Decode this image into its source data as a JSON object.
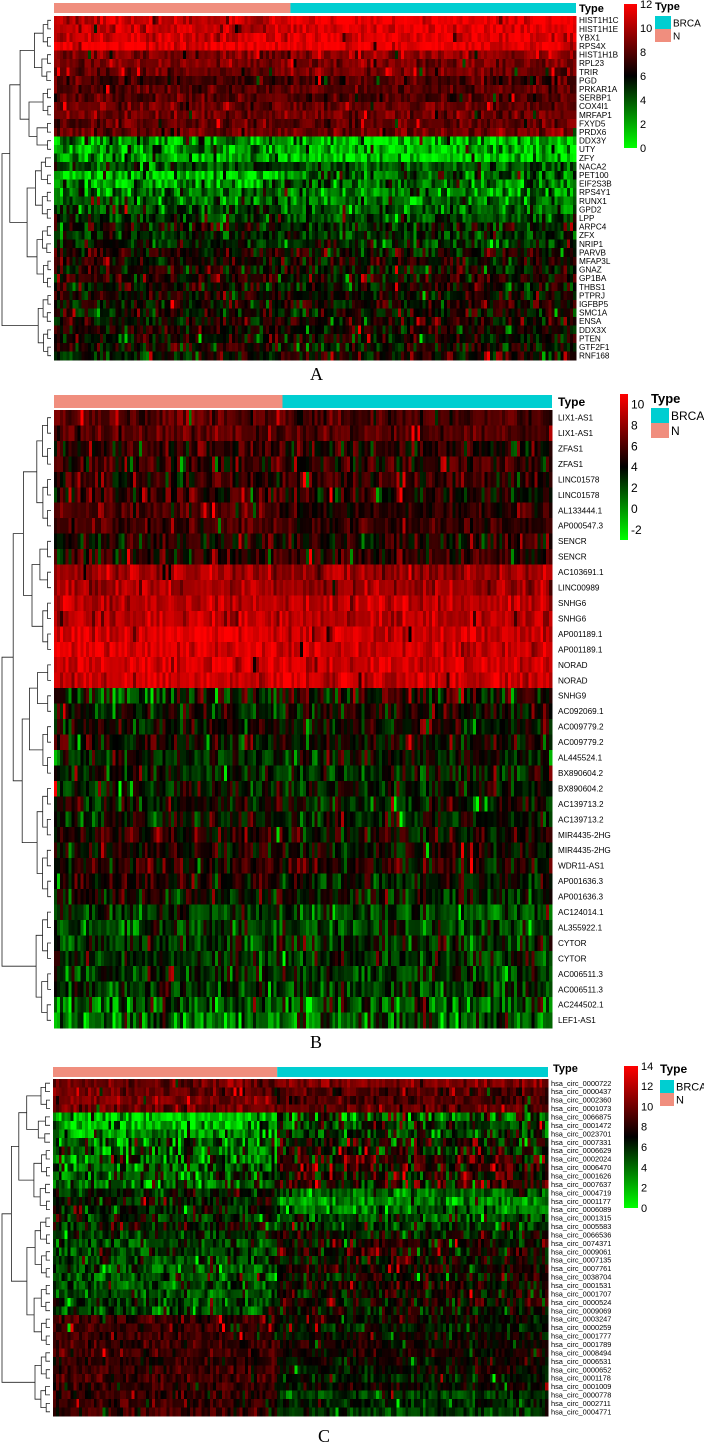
{
  "chart_data": [
    {
      "type": "heatmap",
      "panel_label": "A",
      "annotation_title": "Type",
      "legend_title": "Type",
      "legend_entries": [
        {
          "label": "BRCA",
          "color": "#00CED1"
        },
        {
          "label": "N",
          "color": "#F08E7E"
        }
      ],
      "color_scale": {
        "min": 0,
        "max": 12,
        "low": "#00FF00",
        "mid": "#000000",
        "high": "#FF0000",
        "ticks": [
          "12",
          "10",
          "8",
          "6",
          "4",
          "2",
          "0"
        ]
      },
      "normal_fraction": 0.45,
      "rows": [
        {
          "label": "HIST1H1C",
          "cluster": "high",
          "n": 10.5,
          "t": 11.5
        },
        {
          "label": "HIST1H1E",
          "cluster": "high",
          "n": 10.5,
          "t": 11.3
        },
        {
          "label": "YBX1",
          "cluster": "high",
          "n": 11.0,
          "t": 11.2
        },
        {
          "label": "RPS4X",
          "cluster": "high",
          "n": 11.5,
          "t": 11.4
        },
        {
          "label": "HIST1H1B",
          "cluster": "high",
          "n": 9.0,
          "t": 9.5
        },
        {
          "label": "RPL23",
          "cluster": "high",
          "n": 9.0,
          "t": 8.8
        },
        {
          "label": "TRIR",
          "cluster": "high",
          "n": 8.5,
          "t": 8.8
        },
        {
          "label": "PGD",
          "cluster": "high",
          "n": 7.5,
          "t": 7.8
        },
        {
          "label": "PRKAR1A",
          "cluster": "high",
          "n": 8.0,
          "t": 8.2
        },
        {
          "label": "SERBP1",
          "cluster": "high",
          "n": 8.0,
          "t": 7.8
        },
        {
          "label": "COX4I1",
          "cluster": "high",
          "n": 8.5,
          "t": 8.4
        },
        {
          "label": "MRFAP1",
          "cluster": "high",
          "n": 8.5,
          "t": 8.6
        },
        {
          "label": "FXYD5",
          "cluster": "high",
          "n": 8.0,
          "t": 8.3
        },
        {
          "label": "PRDX6",
          "cluster": "high",
          "n": 8.5,
          "t": 8.7
        },
        {
          "label": "DDX3Y",
          "cluster": "sex",
          "n": 3.0,
          "t": 1.5
        },
        {
          "label": "UTY",
          "cluster": "sex",
          "n": 2.5,
          "t": 1.5
        },
        {
          "label": "ZFY",
          "cluster": "sex",
          "n": 2.5,
          "t": 1.5
        },
        {
          "label": "NACA2",
          "cluster": "mid",
          "n": 4.5,
          "t": 4.0
        },
        {
          "label": "PET100",
          "cluster": "sex",
          "n": 1.5,
          "t": 4.0
        },
        {
          "label": "EIF2S3B",
          "cluster": "sex",
          "n": 2.5,
          "t": 3.5
        },
        {
          "label": "RPS4Y1",
          "cluster": "sex",
          "n": 3.5,
          "t": 3.0
        },
        {
          "label": "RUNX1",
          "cluster": "mid",
          "n": 4.0,
          "t": 3.5
        },
        {
          "label": "GPD2",
          "cluster": "mid",
          "n": 4.5,
          "t": 4.0
        },
        {
          "label": "LPP",
          "cluster": "mid",
          "n": 5.0,
          "t": 4.5
        },
        {
          "label": "ARPC4",
          "cluster": "mid",
          "n": 6.0,
          "t": 5.5
        },
        {
          "label": "ZFX",
          "cluster": "mid",
          "n": 5.5,
          "t": 5.0
        },
        {
          "label": "NRIP1",
          "cluster": "mid",
          "n": 5.5,
          "t": 5.0
        },
        {
          "label": "PARVB",
          "cluster": "mid",
          "n": 6.5,
          "t": 6.0
        },
        {
          "label": "MFAP3L",
          "cluster": "mid",
          "n": 6.0,
          "t": 6.5
        },
        {
          "label": "GNAZ",
          "cluster": "mid",
          "n": 6.5,
          "t": 6.0
        },
        {
          "label": "GP1BA",
          "cluster": "mid",
          "n": 6.5,
          "t": 6.5
        },
        {
          "label": "THBS1",
          "cluster": "mid",
          "n": 6.0,
          "t": 6.5
        },
        {
          "label": "PTPRJ",
          "cluster": "mid",
          "n": 6.5,
          "t": 6.0
        },
        {
          "label": "IGFBP5",
          "cluster": "mid",
          "n": 6.0,
          "t": 6.5
        },
        {
          "label": "SMC1A",
          "cluster": "mid",
          "n": 5.5,
          "t": 6.0
        },
        {
          "label": "ENSA",
          "cluster": "mid",
          "n": 6.0,
          "t": 6.5
        },
        {
          "label": "DDX3X",
          "cluster": "mid",
          "n": 6.5,
          "t": 6.0
        },
        {
          "label": "PTEN",
          "cluster": "mid",
          "n": 6.0,
          "t": 6.2
        },
        {
          "label": "GTF2F1",
          "cluster": "mid",
          "n": 6.2,
          "t": 6.0
        },
        {
          "label": "RNF168",
          "cluster": "mid",
          "n": 6.0,
          "t": 6.3
        }
      ]
    },
    {
      "type": "heatmap",
      "panel_label": "B",
      "annotation_title": "Type",
      "legend_title": "Type",
      "legend_entries": [
        {
          "label": "BRCA",
          "color": "#00CED1"
        },
        {
          "label": "N",
          "color": "#F08E7E"
        }
      ],
      "color_scale": {
        "min": -3,
        "max": 11,
        "low": "#00FF00",
        "mid": "#000000",
        "high": "#FF0000",
        "ticks": [
          "10",
          "8",
          "6",
          "4",
          "2",
          "0",
          "-2"
        ]
      },
      "normal_fraction": 0.46,
      "rows": [
        {
          "label": "LIX1-AS1",
          "cluster": "high",
          "n": 6.5,
          "t": 6.0
        },
        {
          "label": "LIX1-AS1",
          "cluster": "high",
          "n": 6.5,
          "t": 6.2
        },
        {
          "label": "ZFAS1",
          "cluster": "mid",
          "n": 5.5,
          "t": 5.0
        },
        {
          "label": "ZFAS1",
          "cluster": "mid",
          "n": 5.5,
          "t": 5.2
        },
        {
          "label": "LINC01578",
          "cluster": "mid",
          "n": 5.0,
          "t": 5.0
        },
        {
          "label": "LINC01578",
          "cluster": "mid",
          "n": 5.0,
          "t": 4.8
        },
        {
          "label": "AL133444.1",
          "cluster": "high",
          "n": 6.0,
          "t": 5.0
        },
        {
          "label": "AP000547.3",
          "cluster": "high",
          "n": 6.0,
          "t": 5.2
        },
        {
          "label": "SENCR",
          "cluster": "mid",
          "n": 5.0,
          "t": 4.8
        },
        {
          "label": "SENCR",
          "cluster": "mid",
          "n": 5.0,
          "t": 5.0
        },
        {
          "label": "AC103691.1",
          "cluster": "high",
          "n": 8.5,
          "t": 8.0
        },
        {
          "label": "LINC00989",
          "cluster": "high",
          "n": 8.5,
          "t": 8.2
        },
        {
          "label": "SNHG6",
          "cluster": "high",
          "n": 9.0,
          "t": 9.0
        },
        {
          "label": "SNHG6",
          "cluster": "high",
          "n": 9.0,
          "t": 9.2
        },
        {
          "label": "AP001189.1",
          "cluster": "high",
          "n": 10.0,
          "t": 9.5
        },
        {
          "label": "AP001189.1",
          "cluster": "high",
          "n": 10.0,
          "t": 9.5
        },
        {
          "label": "NORAD",
          "cluster": "high",
          "n": 9.5,
          "t": 9.5
        },
        {
          "label": "NORAD",
          "cluster": "high",
          "n": 9.5,
          "t": 9.6
        },
        {
          "label": "SNHG9",
          "cluster": "sex",
          "n": 3.0,
          "t": 4.5
        },
        {
          "label": "AC092069.1",
          "cluster": "mid",
          "n": 3.5,
          "t": 4.0
        },
        {
          "label": "AC009779.2",
          "cluster": "mid",
          "n": 4.0,
          "t": 4.0
        },
        {
          "label": "AC009779.2",
          "cluster": "mid",
          "n": 4.0,
          "t": 4.2
        },
        {
          "label": "AL445524.1",
          "cluster": "mid",
          "n": 3.5,
          "t": 3.8
        },
        {
          "label": "BX890604.2",
          "cluster": "mid",
          "n": 3.5,
          "t": 3.5
        },
        {
          "label": "BX890604.2",
          "cluster": "mid",
          "n": 3.5,
          "t": 3.6
        },
        {
          "label": "AC139713.2",
          "cluster": "mid",
          "n": 4.0,
          "t": 3.5
        },
        {
          "label": "AC139713.2",
          "cluster": "mid",
          "n": 4.0,
          "t": 3.6
        },
        {
          "label": "MIR4435-2HG",
          "cluster": "mid",
          "n": 4.5,
          "t": 4.0
        },
        {
          "label": "MIR4435-2HG",
          "cluster": "mid",
          "n": 4.5,
          "t": 4.2
        },
        {
          "label": "WDR11-AS1",
          "cluster": "mid",
          "n": 5.0,
          "t": 4.5
        },
        {
          "label": "AP001636.3",
          "cluster": "mid",
          "n": 4.5,
          "t": 3.5
        },
        {
          "label": "AP001636.3",
          "cluster": "mid",
          "n": 4.5,
          "t": 3.6
        },
        {
          "label": "AC124014.1",
          "cluster": "mid",
          "n": 2.5,
          "t": 2.0
        },
        {
          "label": "AL355922.1",
          "cluster": "mid",
          "n": 2.5,
          "t": 2.5
        },
        {
          "label": "CYTOR",
          "cluster": "mid",
          "n": 3.0,
          "t": 3.0
        },
        {
          "label": "CYTOR",
          "cluster": "mid",
          "n": 3.0,
          "t": 3.2
        },
        {
          "label": "AC006511.3",
          "cluster": "mid",
          "n": 3.0,
          "t": 2.5
        },
        {
          "label": "AC006511.3",
          "cluster": "mid",
          "n": 3.0,
          "t": 2.6
        },
        {
          "label": "AC244502.1",
          "cluster": "sex",
          "n": 1.5,
          "t": 2.0
        },
        {
          "label": "LEF1-AS1",
          "cluster": "sex",
          "n": 1.0,
          "t": 1.5
        }
      ]
    },
    {
      "type": "heatmap",
      "panel_label": "C",
      "annotation_title": "Type",
      "legend_title": "Type",
      "legend_entries": [
        {
          "label": "BRCA",
          "color": "#00CED1"
        },
        {
          "label": "N",
          "color": "#F08E7E"
        }
      ],
      "color_scale": {
        "min": 0,
        "max": 14,
        "low": "#00FF00",
        "mid": "#000000",
        "high": "#FF0000",
        "ticks": [
          "14",
          "12",
          "10",
          "8",
          "6",
          "4",
          "2",
          "0"
        ]
      },
      "normal_fraction": 0.45,
      "rows": [
        {
          "label": "hsa_circ_0000722",
          "cluster": "high",
          "n": 10.0,
          "t": 10.5
        },
        {
          "label": "hsa_circ_0000437",
          "cluster": "high",
          "n": 10.0,
          "t": 9.0
        },
        {
          "label": "hsa_circ_0002360",
          "cluster": "high",
          "n": 10.5,
          "t": 9.0
        },
        {
          "label": "hsa_circ_0001073",
          "cluster": "high",
          "n": 10.0,
          "t": 9.5
        },
        {
          "label": "hsa_circ_0066875",
          "cluster": "sex",
          "n": 1.0,
          "t": 5.0
        },
        {
          "label": "hsa_circ_0001472",
          "cluster": "sex",
          "n": 2.0,
          "t": 6.0
        },
        {
          "label": "hsa_circ_0023701",
          "cluster": "sex",
          "n": 3.0,
          "t": 6.0
        },
        {
          "label": "hsa_circ_0007331",
          "cluster": "sex",
          "n": 4.5,
          "t": 7.5
        },
        {
          "label": "hsa_circ_0006629",
          "cluster": "sex",
          "n": 4.5,
          "t": 7.5
        },
        {
          "label": "hsa_circ_0002024",
          "cluster": "sex",
          "n": 4.5,
          "t": 8.0
        },
        {
          "label": "hsa_circ_0006470",
          "cluster": "sex",
          "n": 4.5,
          "t": 8.0
        },
        {
          "label": "hsa_circ_0001626",
          "cluster": "sex",
          "n": 4.5,
          "t": 8.0
        },
        {
          "label": "hsa_circ_0007637",
          "cluster": "sex",
          "n": 4.5,
          "t": 8.0
        },
        {
          "label": "hsa_circ_0004719",
          "cluster": "mid",
          "n": 6.5,
          "t": 4.5
        },
        {
          "label": "hsa_circ_0001177",
          "cluster": "mid",
          "n": 6.5,
          "t": 3.5
        },
        {
          "label": "hsa_circ_0006089",
          "cluster": "mid",
          "n": 6.0,
          "t": 4.0
        },
        {
          "label": "hsa_circ_0001315",
          "cluster": "mid",
          "n": 6.0,
          "t": 5.0
        },
        {
          "label": "hsa_circ_0005583",
          "cluster": "mid",
          "n": 6.5,
          "t": 5.5
        },
        {
          "label": "hsa_circ_0066536",
          "cluster": "mid",
          "n": 6.0,
          "t": 7.0
        },
        {
          "label": "hsa_circ_0074371",
          "cluster": "mid",
          "n": 5.5,
          "t": 7.5
        },
        {
          "label": "hsa_circ_0009061",
          "cluster": "mid",
          "n": 5.5,
          "t": 7.5
        },
        {
          "label": "hsa_circ_0007135",
          "cluster": "mid",
          "n": 5.5,
          "t": 7.0
        },
        {
          "label": "hsa_circ_0007761",
          "cluster": "mid",
          "n": 5.0,
          "t": 7.5
        },
        {
          "label": "hsa_circ_0038704",
          "cluster": "mid",
          "n": 5.0,
          "t": 7.0
        },
        {
          "label": "hsa_circ_0001531",
          "cluster": "mid",
          "n": 5.0,
          "t": 7.5
        },
        {
          "label": "hsa_circ_0001707",
          "cluster": "mid",
          "n": 5.0,
          "t": 7.0
        },
        {
          "label": "hsa_circ_0000524",
          "cluster": "mid",
          "n": 5.5,
          "t": 7.5
        },
        {
          "label": "hsa_circ_0009069",
          "cluster": "mid",
          "n": 5.0,
          "t": 7.0
        },
        {
          "label": "hsa_circ_0003247",
          "cluster": "high",
          "n": 8.5,
          "t": 7.0
        },
        {
          "label": "hsa_circ_0000259",
          "cluster": "high",
          "n": 8.5,
          "t": 6.5
        },
        {
          "label": "hsa_circ_0001777",
          "cluster": "high",
          "n": 8.5,
          "t": 7.0
        },
        {
          "label": "hsa_circ_0001789",
          "cluster": "high",
          "n": 8.5,
          "t": 7.5
        },
        {
          "label": "hsa_circ_0008494",
          "cluster": "high",
          "n": 8.5,
          "t": 7.5
        },
        {
          "label": "hsa_circ_0006531",
          "cluster": "high",
          "n": 8.0,
          "t": 7.0
        },
        {
          "label": "hsa_circ_0000652",
          "cluster": "high",
          "n": 8.5,
          "t": 7.0
        },
        {
          "label": "hsa_circ_0001178",
          "cluster": "high",
          "n": 8.5,
          "t": 6.5
        },
        {
          "label": "hsa_circ_0001009",
          "cluster": "high",
          "n": 8.5,
          "t": 7.0
        },
        {
          "label": "hsa_circ_0000778",
          "cluster": "high",
          "n": 8.5,
          "t": 5.5
        },
        {
          "label": "hsa_circ_0002711",
          "cluster": "high",
          "n": 8.5,
          "t": 6.0
        },
        {
          "label": "hsa_circ_0004771",
          "cluster": "high",
          "n": 8.5,
          "t": 5.5
        }
      ]
    }
  ]
}
